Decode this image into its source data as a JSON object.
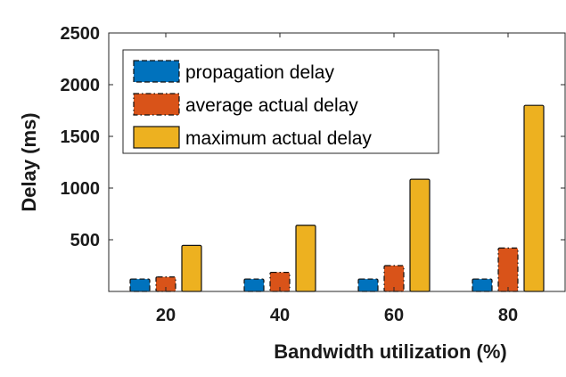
{
  "chart_data": {
    "type": "bar",
    "xlabel": "Bandwidth utilization (%)",
    "ylabel": "Delay (ms)",
    "categories": [
      "20",
      "40",
      "60",
      "80"
    ],
    "ylim": [
      0,
      2500
    ],
    "yticks": [
      "500",
      "1000",
      "1500",
      "2000",
      "2500"
    ],
    "grid": false,
    "legend_position": "top-left",
    "series": [
      {
        "name": "propagation delay",
        "values": [
          120,
          120,
          120,
          120
        ],
        "color": "#0072BD",
        "edge": "dashed"
      },
      {
        "name": "average actual delay",
        "values": [
          140,
          185,
          250,
          420
        ],
        "color": "#D95319",
        "edge": "dash-dot"
      },
      {
        "name": "maximum actual delay",
        "values": [
          445,
          640,
          1085,
          1800
        ],
        "color": "#EDB120",
        "edge": "solid"
      }
    ]
  }
}
